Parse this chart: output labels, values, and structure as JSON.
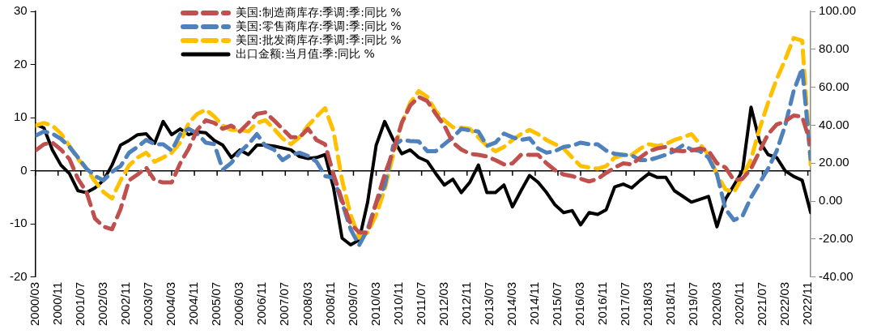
{
  "chart_data": {
    "type": "line",
    "x": [
      "2000-03",
      "2000-06",
      "2000-09",
      "2000-12",
      "2001-03",
      "2001-06",
      "2001-09",
      "2001-12",
      "2002-03",
      "2002-06",
      "2002-09",
      "2002-12",
      "2003-03",
      "2003-06",
      "2003-09",
      "2003-12",
      "2004-03",
      "2004-06",
      "2004-09",
      "2004-12",
      "2005-03",
      "2005-06",
      "2005-09",
      "2005-12",
      "2006-03",
      "2006-06",
      "2006-09",
      "2006-12",
      "2007-03",
      "2007-06",
      "2007-09",
      "2007-12",
      "2008-03",
      "2008-06",
      "2008-09",
      "2008-12",
      "2009-03",
      "2009-06",
      "2009-09",
      "2009-12",
      "2010-03",
      "2010-06",
      "2010-09",
      "2010-12",
      "2011-03",
      "2011-06",
      "2011-09",
      "2011-12",
      "2012-03",
      "2012-06",
      "2012-09",
      "2012-12",
      "2013-03",
      "2013-06",
      "2013-09",
      "2013-12",
      "2014-03",
      "2014-06",
      "2014-09",
      "2014-12",
      "2015-03",
      "2015-06",
      "2015-09",
      "2015-12",
      "2016-03",
      "2016-06",
      "2016-09",
      "2016-12",
      "2017-03",
      "2017-06",
      "2017-09",
      "2017-12",
      "2018-03",
      "2018-06",
      "2018-09",
      "2018-12",
      "2019-03",
      "2019-06",
      "2019-09",
      "2019-12",
      "2020-03",
      "2020-06",
      "2020-09",
      "2020-12",
      "2021-03",
      "2021-06",
      "2021-09",
      "2021-12",
      "2022-03",
      "2022-06",
      "2022-09",
      "2022-12"
    ],
    "series": [
      {
        "name": "美国:制造商库存:季调:季:同比 %",
        "color": "#c0504d",
        "line_style": "dashed",
        "values": [
          3.8,
          5,
          5.3,
          4,
          2.2,
          -1.5,
          -4,
          -9,
          -10.5,
          -11,
          -7.2,
          -1.8,
          -0.7,
          0.6,
          -1.8,
          -2.2,
          -2.2,
          1.4,
          4.2,
          7.7,
          9.5,
          9,
          7.9,
          8.5,
          7.4,
          9,
          10.7,
          11,
          9.5,
          7.9,
          6.3,
          6.3,
          7.9,
          5.8,
          5,
          -0.7,
          -5.6,
          -10,
          -11.6,
          -11.6,
          -6,
          -0.7,
          3.7,
          9,
          12.3,
          13.9,
          13.1,
          10.7,
          8.5,
          5.3,
          4,
          3.2,
          3,
          2.7,
          2,
          1.2,
          1.4,
          3,
          3,
          3,
          1.4,
          0.1,
          -0.7,
          -1,
          -1.5,
          -2,
          -1.5,
          -0.4,
          0.6,
          1.4,
          1.2,
          2.5,
          3.7,
          4.2,
          4.5,
          3.8,
          3.7,
          3.8,
          4.2,
          3.8,
          1.4,
          0.6,
          -1.8,
          -1.5,
          0.4,
          3.7,
          6.9,
          8.7,
          9.3,
          10.4,
          10.2,
          5
        ]
      },
      {
        "name": "美国:零售商库存:季调:季:同比 %",
        "color": "#4f81bd",
        "line_style": "dashed",
        "values": [
          6.6,
          7.4,
          7,
          6,
          4.5,
          2.5,
          0.4,
          -1,
          -1.8,
          -0.2,
          0.9,
          3.4,
          4.5,
          5.8,
          5,
          5,
          3.8,
          6.9,
          7.9,
          7,
          5.3,
          5,
          0.2,
          1.5,
          3.5,
          5,
          6.9,
          4.7,
          4,
          2,
          3,
          3.4,
          2.8,
          1.7,
          -1,
          -1.3,
          -6,
          -11,
          -14,
          -11,
          -6,
          -2.8,
          4.7,
          5.8,
          5.6,
          5.5,
          3.7,
          3.7,
          5,
          6.3,
          7.9,
          7.6,
          7.4,
          4.7,
          5.3,
          7,
          6.3,
          5.8,
          6.1,
          4.2,
          3.4,
          3.7,
          4.5,
          4.7,
          5.3,
          5,
          5,
          3.8,
          3.2,
          3,
          2.9,
          2,
          2,
          2.5,
          3,
          3.7,
          4.8,
          4,
          3.7,
          2.5,
          -0.7,
          -7.2,
          -9.3,
          -8.5,
          -5,
          -2.3,
          0.4,
          3.7,
          8.5,
          15,
          19.3,
          2.2
        ]
      },
      {
        "name": "美国:批发商库存:季调:季:同比 %",
        "color": "#ffc000",
        "line_style": "dashed",
        "values": [
          8.5,
          9,
          8.5,
          7,
          4.7,
          2.2,
          0.4,
          -2,
          -4,
          -5.2,
          -1.8,
          1,
          2.5,
          3.4,
          1.7,
          2.5,
          3.4,
          5.3,
          9,
          10.7,
          11.5,
          10.2,
          8.5,
          7.7,
          7.7,
          7.4,
          9,
          9.5,
          7.9,
          6.1,
          5,
          6.3,
          8.5,
          10.2,
          11.8,
          7.4,
          -1.8,
          -8.3,
          -12.6,
          -11.6,
          -8.3,
          -3.5,
          3,
          9,
          12.8,
          15,
          13.9,
          11.2,
          9.5,
          8.2,
          8.1,
          7.9,
          6.3,
          4.7,
          3.7,
          4.5,
          5.8,
          6.9,
          7.7,
          6.9,
          5.8,
          5,
          4.2,
          2.5,
          0.9,
          0.6,
          0.4,
          0.9,
          2.5,
          3,
          3,
          4.2,
          5,
          4.7,
          5,
          5.8,
          6.3,
          6.9,
          5,
          3,
          -0.7,
          -3.5,
          -4,
          -1.2,
          2.2,
          7.9,
          12.8,
          17.2,
          20.9,
          25,
          24.5,
          1
        ]
      },
      {
        "name": "出口金额:当月值:季:同比 %",
        "color": "#000000",
        "line_style": "solid",
        "axis": "y2",
        "values": [
          40.5,
          38.6,
          27,
          19,
          14.5,
          5.5,
          4.5,
          7,
          11,
          19,
          29.5,
          32,
          35,
          35.5,
          30.5,
          42,
          35,
          38,
          35,
          36.5,
          36,
          32,
          29.5,
          23,
          27,
          24.5,
          29.5,
          29.5,
          29,
          28,
          27,
          23.5,
          22.5,
          23,
          24.5,
          7,
          -19.5,
          -23,
          -20.5,
          -0.5,
          29.5,
          42,
          32.5,
          25,
          27,
          23,
          21,
          14.5,
          8.5,
          11.5,
          4.5,
          10,
          19,
          4.5,
          4.5,
          8.5,
          -3,
          5.5,
          13.5,
          10,
          4.5,
          -2,
          -6,
          -5,
          -12.5,
          -6,
          -7,
          -4.5,
          7.5,
          9,
          7,
          11,
          14.5,
          12.5,
          12.5,
          5.5,
          2.5,
          -0.5,
          1,
          2.5,
          -13.5,
          1,
          8.5,
          16,
          49.5,
          31.5,
          24.5,
          23,
          16,
          13,
          11,
          -6
        ]
      }
    ],
    "xlim": [
      "2000-03",
      "2022-12"
    ],
    "xticks": [
      {
        "value": "2000-03",
        "label": "2000/03"
      },
      {
        "value": "2000-11",
        "label": "2000/11"
      },
      {
        "value": "2001-07",
        "label": "2001/07"
      },
      {
        "value": "2002-03",
        "label": "2002/03"
      },
      {
        "value": "2002-11",
        "label": "2002/11"
      },
      {
        "value": "2003-07",
        "label": "2003/07"
      },
      {
        "value": "2004-03",
        "label": "2004/03"
      },
      {
        "value": "2004-11",
        "label": "2004/11"
      },
      {
        "value": "2005-07",
        "label": "2005/07"
      },
      {
        "value": "2006-03",
        "label": "2006/03"
      },
      {
        "value": "2006-11",
        "label": "2006/11"
      },
      {
        "value": "2007-07",
        "label": "2007/07"
      },
      {
        "value": "2008-03",
        "label": "2008/03"
      },
      {
        "value": "2008-11",
        "label": "2008/11"
      },
      {
        "value": "2009-07",
        "label": "2009/07"
      },
      {
        "value": "2010-03",
        "label": "2010/03"
      },
      {
        "value": "2010-11",
        "label": "2010/11"
      },
      {
        "value": "2011-07",
        "label": "2011/07"
      },
      {
        "value": "2012-03",
        "label": "2012/03"
      },
      {
        "value": "2012-11",
        "label": "2012/11"
      },
      {
        "value": "2013-07",
        "label": "2013/07"
      },
      {
        "value": "2014-03",
        "label": "2014/03"
      },
      {
        "value": "2014-11",
        "label": "2014/11"
      },
      {
        "value": "2015-07",
        "label": "2015/07"
      },
      {
        "value": "2016-03",
        "label": "2016/03"
      },
      {
        "value": "2016-11",
        "label": "2016/11"
      },
      {
        "value": "2017-07",
        "label": "2017/07"
      },
      {
        "value": "2018-03",
        "label": "2018/03"
      },
      {
        "value": "2018-11",
        "label": "2018/11"
      },
      {
        "value": "2019-07",
        "label": "2019/07"
      },
      {
        "value": "2020-03",
        "label": "2020/03"
      },
      {
        "value": "2020-11",
        "label": "2020/11"
      },
      {
        "value": "2021-07",
        "label": "2021/07"
      },
      {
        "value": "2022-03",
        "label": "2022/03"
      },
      {
        "value": "2022-11",
        "label": "2022/11"
      }
    ],
    "ylim": [
      -20,
      30
    ],
    "yticks": [
      -20,
      -10,
      0,
      10,
      20,
      30
    ],
    "y2lim": [
      -40,
      100
    ],
    "y2ticks": [
      {
        "value": -40,
        "label": "-40.00"
      },
      {
        "value": -20,
        "label": "-20.00"
      },
      {
        "value": 0,
        "label": "0.00"
      },
      {
        "value": 20,
        "label": "20.00"
      },
      {
        "value": 40,
        "label": "40.00"
      },
      {
        "value": 60,
        "label": "60.00"
      },
      {
        "value": 80,
        "label": "80.00"
      },
      {
        "value": 100,
        "label": "100.00"
      }
    ],
    "legend": "top",
    "marker": "none"
  }
}
